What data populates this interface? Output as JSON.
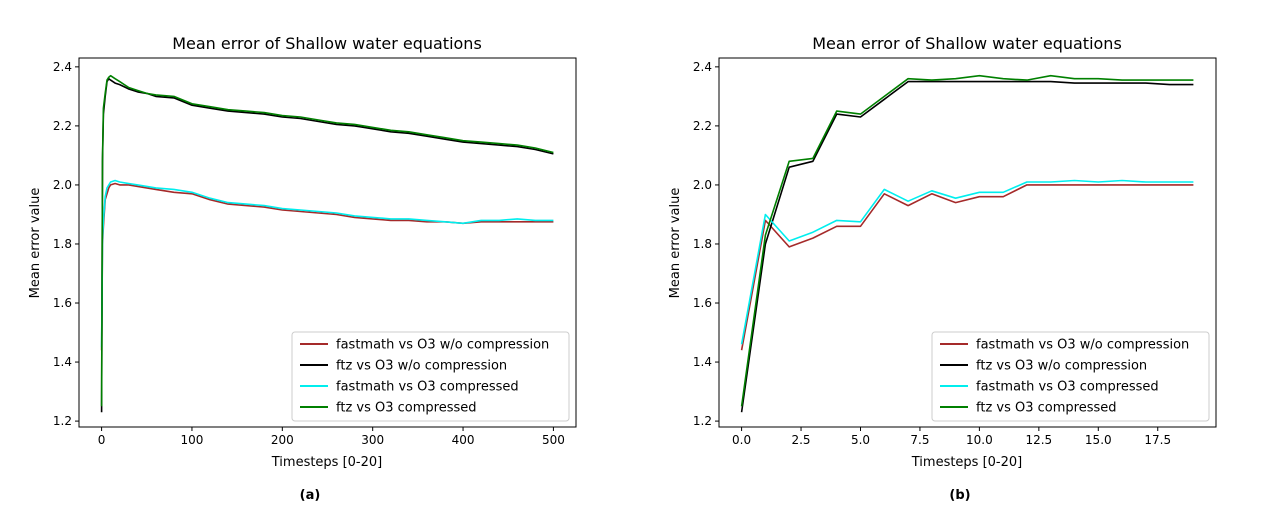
{
  "captions": [
    "(a)",
    "(b)"
  ],
  "chart_data": [
    {
      "type": "line",
      "title": "Mean error of Shallow water equations",
      "xlabel": "Timesteps [0-20]",
      "ylabel": "Mean error value",
      "xlim": [
        -25,
        525
      ],
      "ylim": [
        1.18,
        2.43
      ],
      "xticks": [
        0,
        100,
        200,
        300,
        400,
        500
      ],
      "yticks": [
        1.2,
        1.4,
        1.6,
        1.8,
        2.0,
        2.2,
        2.4
      ],
      "legend_position": "lower-right",
      "grid": false,
      "series": [
        {
          "name": "fastmath vs O3 w/o compression",
          "color": "#a52a2a",
          "x": [
            0,
            1,
            2,
            4,
            6,
            8,
            10,
            15,
            20,
            30,
            40,
            50,
            60,
            80,
            100,
            120,
            140,
            160,
            180,
            200,
            220,
            240,
            260,
            280,
            300,
            320,
            340,
            360,
            380,
            400,
            420,
            440,
            460,
            480,
            500
          ],
          "y": [
            1.44,
            1.8,
            1.86,
            1.95,
            1.97,
            1.99,
            2.0,
            2.005,
            2.0,
            2.0,
            1.995,
            1.99,
            1.985,
            1.975,
            1.97,
            1.95,
            1.935,
            1.93,
            1.925,
            1.915,
            1.91,
            1.905,
            1.9,
            1.89,
            1.885,
            1.88,
            1.88,
            1.875,
            1.875,
            1.87,
            1.875,
            1.875,
            1.875,
            1.875,
            1.875
          ]
        },
        {
          "name": "ftz vs O3 w/o compression",
          "color": "#000000",
          "x": [
            0,
            1,
            2,
            4,
            6,
            8,
            10,
            15,
            20,
            30,
            40,
            50,
            60,
            80,
            100,
            120,
            140,
            160,
            180,
            200,
            220,
            240,
            260,
            280,
            300,
            320,
            340,
            360,
            380,
            400,
            420,
            440,
            460,
            480,
            500
          ],
          "y": [
            1.23,
            2.08,
            2.24,
            2.3,
            2.35,
            2.36,
            2.355,
            2.345,
            2.34,
            2.325,
            2.315,
            2.31,
            2.3,
            2.295,
            2.27,
            2.26,
            2.25,
            2.245,
            2.24,
            2.23,
            2.225,
            2.215,
            2.205,
            2.2,
            2.19,
            2.18,
            2.175,
            2.165,
            2.155,
            2.145,
            2.14,
            2.135,
            2.13,
            2.12,
            2.105
          ]
        },
        {
          "name": "fastmath vs O3 compressed",
          "color": "#00eeee",
          "x": [
            0,
            1,
            2,
            4,
            6,
            8,
            10,
            15,
            20,
            30,
            40,
            50,
            60,
            80,
            100,
            120,
            140,
            160,
            180,
            200,
            220,
            240,
            260,
            280,
            300,
            320,
            340,
            360,
            380,
            400,
            420,
            440,
            460,
            480,
            500
          ],
          "y": [
            1.45,
            1.82,
            1.88,
            1.96,
            1.99,
            2.0,
            2.01,
            2.015,
            2.01,
            2.005,
            2.0,
            1.995,
            1.99,
            1.985,
            1.975,
            1.955,
            1.94,
            1.935,
            1.93,
            1.92,
            1.915,
            1.91,
            1.905,
            1.895,
            1.89,
            1.885,
            1.885,
            1.88,
            1.875,
            1.87,
            1.88,
            1.88,
            1.885,
            1.88,
            1.88
          ]
        },
        {
          "name": "ftz vs O3 compressed",
          "color": "#008000",
          "x": [
            0,
            1,
            2,
            4,
            6,
            8,
            10,
            15,
            20,
            30,
            40,
            50,
            60,
            80,
            100,
            120,
            140,
            160,
            180,
            200,
            220,
            240,
            260,
            280,
            300,
            320,
            340,
            360,
            380,
            400,
            420,
            440,
            460,
            480,
            500
          ],
          "y": [
            1.25,
            2.09,
            2.26,
            2.31,
            2.355,
            2.365,
            2.37,
            2.36,
            2.35,
            2.33,
            2.32,
            2.31,
            2.305,
            2.3,
            2.275,
            2.265,
            2.255,
            2.25,
            2.245,
            2.235,
            2.23,
            2.22,
            2.21,
            2.205,
            2.195,
            2.185,
            2.18,
            2.17,
            2.16,
            2.15,
            2.145,
            2.14,
            2.135,
            2.125,
            2.11
          ]
        }
      ]
    },
    {
      "type": "line",
      "title": "Mean error of Shallow water equations",
      "xlabel": "Timesteps [0-20]",
      "ylabel": "Mean error value",
      "xlim": [
        -0.95,
        19.95
      ],
      "ylim": [
        1.18,
        2.43
      ],
      "xticks": [
        0.0,
        2.5,
        5.0,
        7.5,
        10.0,
        12.5,
        15.0,
        17.5
      ],
      "yticks": [
        1.2,
        1.4,
        1.6,
        1.8,
        2.0,
        2.2,
        2.4
      ],
      "legend_position": "lower-right",
      "grid": false,
      "series": [
        {
          "name": "fastmath vs O3 w/o compression",
          "color": "#a52a2a",
          "x": [
            0,
            1,
            2,
            3,
            4,
            5,
            6,
            7,
            8,
            9,
            10,
            11,
            12,
            13,
            14,
            15,
            16,
            17,
            18,
            19
          ],
          "y": [
            1.44,
            1.88,
            1.79,
            1.82,
            1.86,
            1.86,
            1.97,
            1.93,
            1.97,
            1.94,
            1.96,
            1.96,
            2.0,
            2.0,
            2.0,
            2.0,
            2.0,
            2.0,
            2.0,
            2.0
          ]
        },
        {
          "name": "ftz vs O3 w/o compression",
          "color": "#000000",
          "x": [
            0,
            1,
            2,
            3,
            4,
            5,
            6,
            7,
            8,
            9,
            10,
            11,
            12,
            13,
            14,
            15,
            16,
            17,
            18,
            19
          ],
          "y": [
            1.23,
            1.8,
            2.06,
            2.08,
            2.24,
            2.23,
            2.29,
            2.35,
            2.35,
            2.35,
            2.35,
            2.35,
            2.35,
            2.35,
            2.345,
            2.345,
            2.345,
            2.345,
            2.34,
            2.34
          ]
        },
        {
          "name": "fastmath vs O3 compressed",
          "color": "#00eeee",
          "x": [
            0,
            1,
            2,
            3,
            4,
            5,
            6,
            7,
            8,
            9,
            10,
            11,
            12,
            13,
            14,
            15,
            16,
            17,
            18,
            19
          ],
          "y": [
            1.46,
            1.9,
            1.81,
            1.84,
            1.88,
            1.875,
            1.985,
            1.945,
            1.98,
            1.955,
            1.975,
            1.975,
            2.01,
            2.01,
            2.015,
            2.01,
            2.015,
            2.01,
            2.01,
            2.01
          ]
        },
        {
          "name": "ftz vs O3 compressed",
          "color": "#008000",
          "x": [
            0,
            1,
            2,
            3,
            4,
            5,
            6,
            7,
            8,
            9,
            10,
            11,
            12,
            13,
            14,
            15,
            16,
            17,
            18,
            19
          ],
          "y": [
            1.25,
            1.83,
            2.08,
            2.09,
            2.25,
            2.24,
            2.3,
            2.36,
            2.355,
            2.36,
            2.37,
            2.36,
            2.355,
            2.37,
            2.36,
            2.36,
            2.355,
            2.355,
            2.355,
            2.355
          ]
        }
      ]
    }
  ]
}
